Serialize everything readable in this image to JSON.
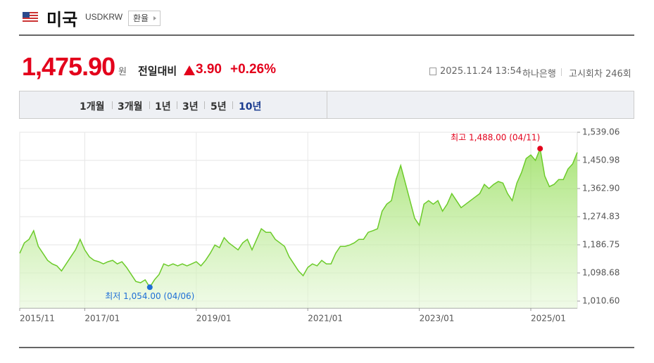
{
  "header": {
    "title": "미국",
    "code": "USDKRW",
    "button": "환율"
  },
  "price": {
    "value": "1,475.90",
    "unit": "원",
    "change_label": "전일대비",
    "change": "3.90",
    "change_pct": "+0.26%"
  },
  "info": {
    "datetime": "2025.11.24 13:54",
    "bank": "하나은행",
    "round": "고시회차 246회"
  },
  "tabs": [
    "1개월",
    "3개월",
    "1년",
    "3년",
    "5년",
    "10년"
  ],
  "chart_data": {
    "type": "area",
    "grid": true,
    "x": [
      "2015/11",
      null,
      null,
      null,
      null,
      null,
      null,
      null,
      null,
      null,
      null,
      null,
      null,
      null,
      "2017/01",
      null,
      null,
      null,
      null,
      null,
      null,
      null,
      null,
      null,
      null,
      null,
      null,
      null,
      null,
      null,
      null,
      null,
      null,
      null,
      null,
      null,
      null,
      null,
      "2019/01",
      null,
      null,
      null,
      null,
      null,
      null,
      null,
      null,
      null,
      null,
      null,
      null,
      null,
      null,
      null,
      null,
      null,
      null,
      null,
      null,
      null,
      null,
      null,
      "2021/01",
      null,
      null,
      null,
      null,
      null,
      null,
      null,
      null,
      null,
      null,
      null,
      null,
      null,
      null,
      null,
      null,
      null,
      null,
      null,
      null,
      null,
      null,
      null,
      "2023/01",
      null,
      null,
      null,
      null,
      null,
      null,
      null,
      null,
      null,
      null,
      null,
      null,
      null,
      null,
      null,
      null,
      null,
      null,
      null,
      null,
      null,
      null,
      null,
      "2025/01",
      null,
      null,
      null,
      null,
      null,
      null,
      null,
      null,
      null,
      null
    ],
    "series": [
      {
        "color": "#6ccb2a",
        "values": [
          1160,
          1193,
          1204,
          1231,
          1182,
          1160,
          1138,
          1127,
          1121,
          1105,
          1127,
          1149,
          1171,
          1204,
          1171,
          1149,
          1138,
          1134,
          1127,
          1134,
          1138,
          1127,
          1134,
          1116,
          1094,
          1072,
          1068,
          1077,
          1054,
          1077,
          1094,
          1127,
          1121,
          1127,
          1121,
          1127,
          1121,
          1127,
          1134,
          1121,
          1138,
          1160,
          1186,
          1178,
          1209,
          1193,
          1182,
          1171,
          1193,
          1204,
          1171,
          1204,
          1237,
          1226,
          1226,
          1204,
          1193,
          1182,
          1149,
          1127,
          1105,
          1090,
          1116,
          1127,
          1121,
          1138,
          1127,
          1127,
          1160,
          1182,
          1182,
          1186,
          1193,
          1204,
          1204,
          1226,
          1231,
          1237,
          1292,
          1314,
          1325,
          1391,
          1435,
          1380,
          1325,
          1270,
          1248,
          1314,
          1325,
          1314,
          1325,
          1292,
          1314,
          1347,
          1325,
          1303,
          1314,
          1325,
          1336,
          1347,
          1376,
          1363,
          1376,
          1385,
          1380,
          1347,
          1325,
          1380,
          1413,
          1457,
          1468,
          1451,
          1488,
          1402,
          1369,
          1376,
          1391,
          1391,
          1424,
          1440,
          1475.9
        ]
      }
    ],
    "ylim": [
      988.58,
      1539.06
    ],
    "yticks": [
      {
        "value": 1010.6,
        "label": "1,010.60"
      },
      {
        "value": 1098.68,
        "label": "1,098.68"
      },
      {
        "value": 1186.75,
        "label": "1,186.75"
      },
      {
        "value": 1274.83,
        "label": "1,274.83"
      },
      {
        "value": 1362.9,
        "label": "1,362.90"
      },
      {
        "value": 1450.98,
        "label": "1,450.98"
      },
      {
        "value": 1539.06,
        "label": "1,539.06"
      }
    ],
    "annotations": {
      "high": {
        "text": "최고 1,488.00 (04/11)",
        "color": "#e3001b"
      },
      "low": {
        "text": "최저 1,054.00 (04/06)",
        "color": "#1f6fd6"
      }
    }
  }
}
